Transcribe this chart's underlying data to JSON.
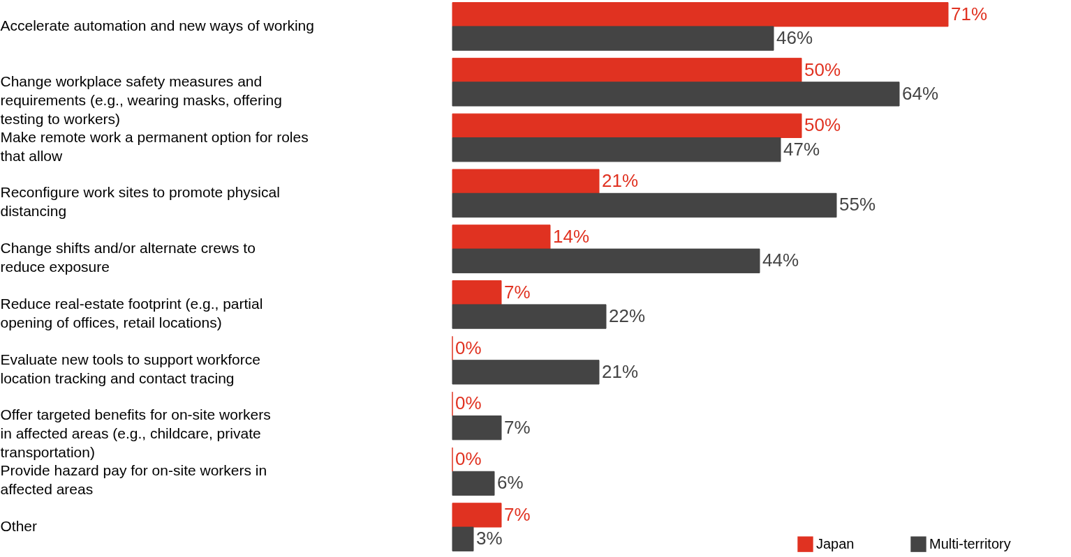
{
  "chart_data": {
    "type": "bar",
    "orientation": "horizontal",
    "legend": "bottom right",
    "categories": [
      "Accelerate automation and new ways of working",
      "Change workplace safety measures and requirements (e.g., wearing masks, offering testing to workers)",
      "Make remote work a permanent option for roles that allow",
      "Reconfigure work sites to promote physical distancing",
      "Change shifts and/or alternate crews to reduce exposure",
      "Reduce real-estate footprint (e.g., partial opening of offices, retail locations)",
      "Evaluate new tools to support workforce location tracking and contact tracing",
      "Offer targeted benefits for on-site workers in affected areas (e.g., childcare, private transportation)",
      "Provide hazard pay for on-site workers in affected areas",
      "Other"
    ],
    "series": [
      {
        "name": "Japan",
        "color": "#e03221",
        "values": [
          71,
          50,
          50,
          21,
          14,
          7,
          0,
          0,
          0,
          7
        ],
        "value_labels": [
          "71%",
          "50%",
          "50%",
          "21%",
          "14%",
          "7%",
          "0%",
          "0%",
          "0%",
          "7%"
        ]
      },
      {
        "name": "Multi-territory",
        "color": "#444444",
        "values": [
          46,
          64,
          47,
          55,
          44,
          22,
          21,
          7,
          6,
          3
        ],
        "value_labels": [
          "46%",
          "64%",
          "47%",
          "55%",
          "44%",
          "22%",
          "21%",
          "7%",
          "6%",
          "3%"
        ]
      }
    ]
  }
}
